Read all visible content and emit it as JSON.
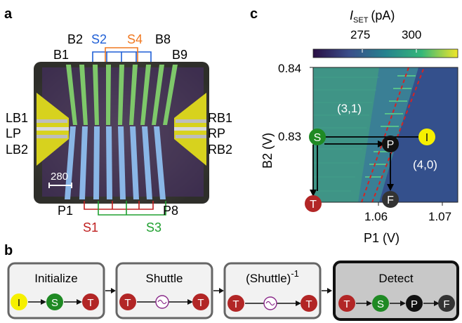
{
  "panels": {
    "a": {
      "label": "a",
      "gate_labels_top": [
        "B2",
        "B8",
        "B1",
        "B9"
      ],
      "screen_labels_top": [
        "S2",
        "S4"
      ],
      "gate_labels_left": [
        "LB1",
        "LP",
        "LB2"
      ],
      "gate_labels_right": [
        "RB1",
        "RP",
        "RB2"
      ],
      "gate_labels_bottom": [
        "P1",
        "P8"
      ],
      "screen_labels_bottom": [
        "S1",
        "S3"
      ],
      "scale_bar": "280"
    },
    "b": {
      "label": "b",
      "steps": [
        {
          "title": "Initialize",
          "from": "I",
          "to": [
            "S",
            "T"
          ]
        },
        {
          "title": "Shuttle",
          "from": "T",
          "to": [
            "T"
          ]
        },
        {
          "title": "(Shuttle)",
          "superscript": "-1",
          "from": "T",
          "to": [
            "T"
          ]
        },
        {
          "title": "Detect",
          "from": "T",
          "to": [
            "S",
            "P",
            "F"
          ]
        }
      ]
    },
    "c": {
      "label": "c",
      "colorbar_title": "I",
      "colorbar_title_sub": "SET",
      "colorbar_unit": "(pA)",
      "colorbar_ticks": [
        "275",
        "300"
      ],
      "xlabel": "P1 (V)",
      "ylabel": "B2 (V)",
      "xticks": [
        "1.06",
        "1.07"
      ],
      "yticks": [
        "0.84",
        "0.83"
      ],
      "regions": [
        "(3,1)",
        "(4,0)"
      ],
      "markers": [
        "S",
        "P",
        "I",
        "T",
        "F"
      ]
    }
  },
  "colors": {
    "I": "#f6f000",
    "S": "#1f8a24",
    "P": "#111111",
    "T": "#b22626",
    "F": "#333333",
    "screen_blue": "#1f5fd6",
    "screen_orange": "#f07820",
    "screen_red": "#c02020",
    "screen_green": "#20a030"
  }
}
